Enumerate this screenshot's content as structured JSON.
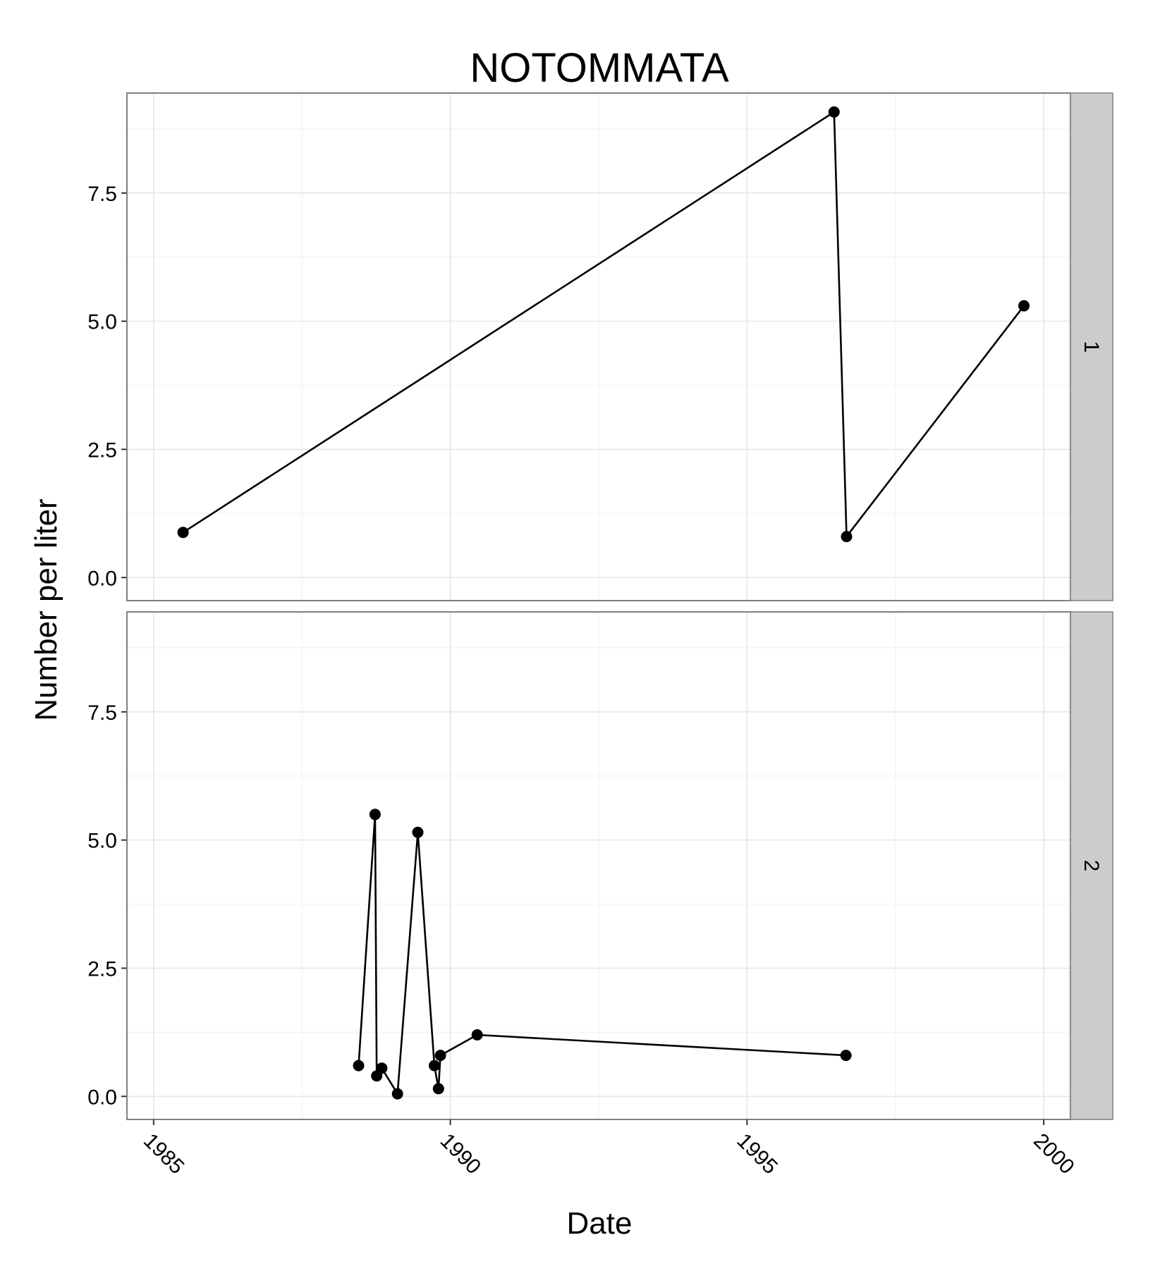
{
  "chart_data": {
    "type": "line",
    "title": "NOTOMMATA",
    "xlabel": "Date",
    "ylabel": "Number per liter",
    "xlim": [
      "1985-01-01",
      "2000-01-01"
    ],
    "ylim": [
      0,
      9
    ],
    "x_ticks": [
      "1985",
      "1990",
      "1995",
      "2000"
    ],
    "y_ticks": [
      "0.0",
      "2.5",
      "5.0",
      "7.5"
    ],
    "grid": true,
    "facets": [
      {
        "label": "1",
        "points": [
          {
            "x": "1985-07-01",
            "y": 0.88
          },
          {
            "x": "1996-06-20",
            "y": 9.08
          },
          {
            "x": "1996-09-05",
            "y": 0.8
          },
          {
            "x": "1999-09-01",
            "y": 5.3
          }
        ]
      },
      {
        "label": "2",
        "points": [
          {
            "x": "1988-06-15",
            "y": 0.6
          },
          {
            "x": "1988-09-25",
            "y": 5.5
          },
          {
            "x": "1988-10-05",
            "y": 0.4
          },
          {
            "x": "1988-11-05",
            "y": 0.55
          },
          {
            "x": "1989-02-10",
            "y": 0.05
          },
          {
            "x": "1989-06-15",
            "y": 5.15
          },
          {
            "x": "1989-09-25",
            "y": 0.6
          },
          {
            "x": "1989-10-20",
            "y": 0.15
          },
          {
            "x": "1989-11-01",
            "y": 0.8
          },
          {
            "x": "1990-06-15",
            "y": 1.2
          },
          {
            "x": "1996-09-01",
            "y": 0.8
          }
        ]
      }
    ]
  }
}
